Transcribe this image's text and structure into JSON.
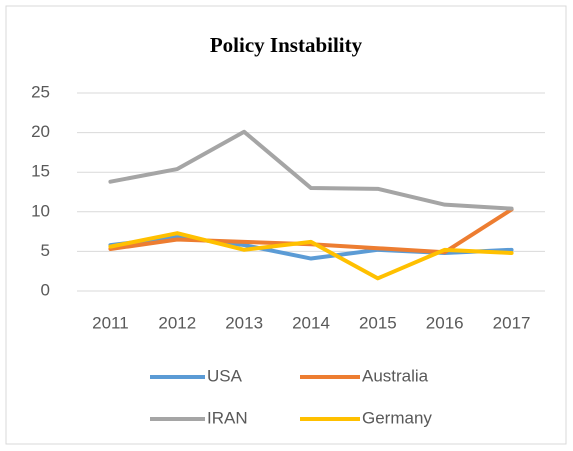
{
  "chart_data": {
    "type": "line",
    "title": "Policy Instability",
    "categories": [
      "2011",
      "2012",
      "2013",
      "2014",
      "2015",
      "2016",
      "2017"
    ],
    "series": [
      {
        "name": "USA",
        "color": "#5b9bd5",
        "values": [
          5.8,
          6.8,
          5.8,
          4.1,
          5.2,
          4.8,
          5.2
        ]
      },
      {
        "name": "Australia",
        "color": "#ed7d31",
        "values": [
          5.3,
          6.5,
          6.2,
          5.9,
          5.4,
          4.9,
          10.3
        ]
      },
      {
        "name": "IRAN",
        "color": "#a5a5a5",
        "values": [
          13.8,
          15.4,
          20.1,
          13.0,
          12.9,
          10.9,
          10.4
        ]
      },
      {
        "name": "Germany",
        "color": "#ffc000",
        "values": [
          5.6,
          7.3,
          5.2,
          6.2,
          1.6,
          5.2,
          4.8
        ]
      }
    ],
    "ylim": [
      0,
      25
    ],
    "yticks": [
      0,
      5,
      10,
      15,
      20,
      25
    ],
    "grid": true,
    "legend": "bottom"
  }
}
